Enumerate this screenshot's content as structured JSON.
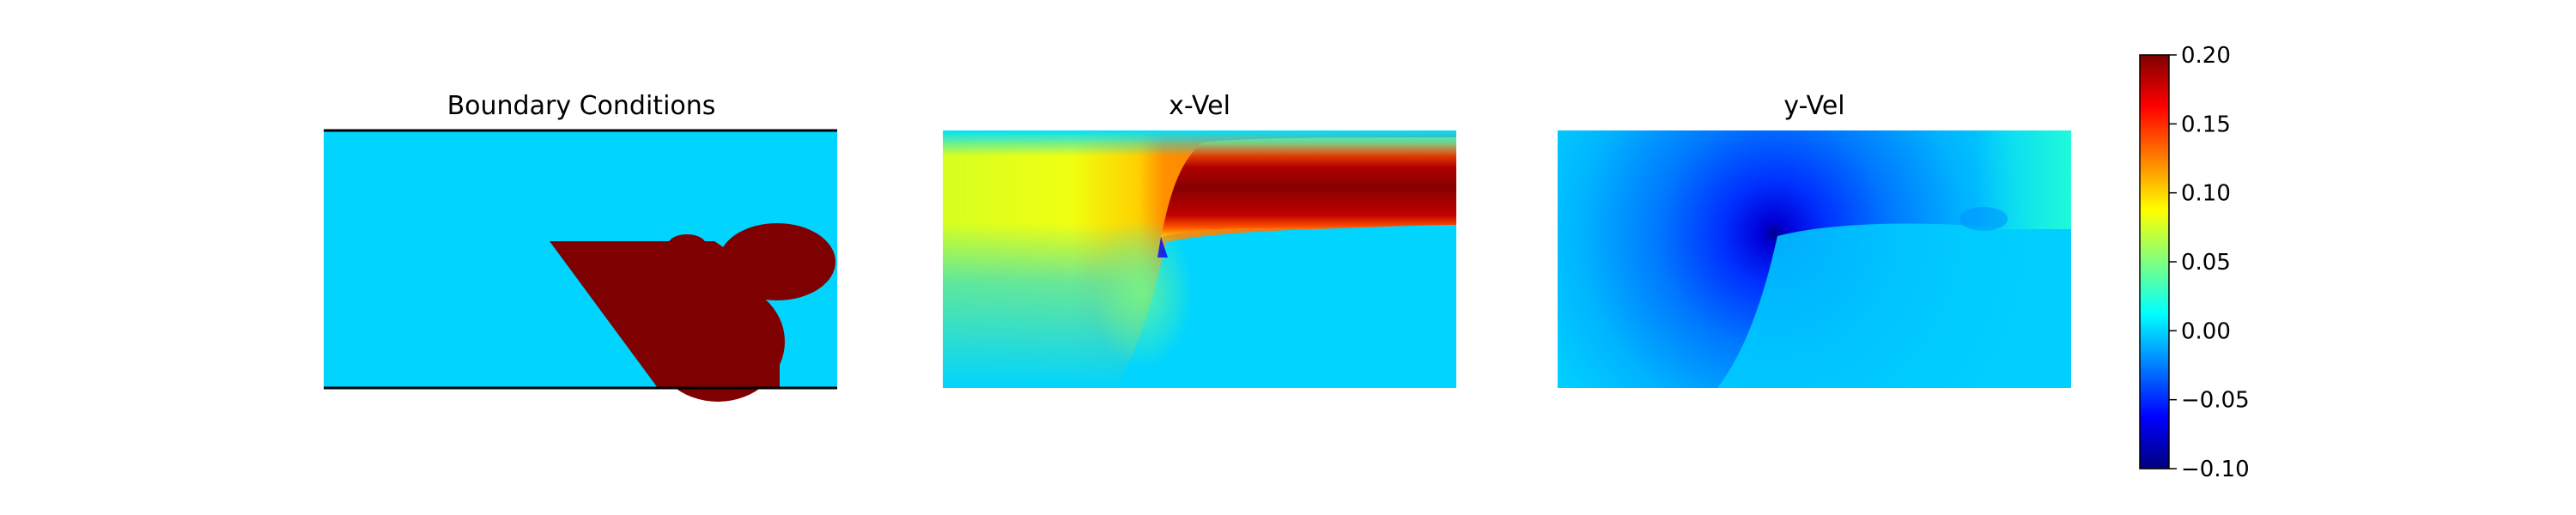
{
  "chart_data": {
    "type": "heatmap",
    "colormap": "jet",
    "colorbar": {
      "range": [
        -0.1,
        0.2
      ],
      "ticks": [
        {
          "value": 0.2,
          "label": "0.20"
        },
        {
          "value": 0.15,
          "label": "0.15"
        },
        {
          "value": 0.1,
          "label": "0.10"
        },
        {
          "value": 0.05,
          "label": "0.05"
        },
        {
          "value": 0.0,
          "label": "0.00"
        },
        {
          "value": -0.05,
          "label": "−0.05"
        },
        {
          "value": -0.1,
          "label": "−0.10"
        }
      ],
      "colors": {
        "stops": [
          "#00007f",
          "#0000ff",
          "#007fff",
          "#00ffff",
          "#7fff7f",
          "#ffff00",
          "#ff7f00",
          "#ff0000",
          "#7f0000"
        ]
      }
    },
    "panels": [
      {
        "title": "Boundary Conditions",
        "background_value": 0.0,
        "obstacle_value": 0.2,
        "colors": {
          "fluid": "#00d4ff",
          "obstacle": "#7f0000",
          "wall": "#000000"
        }
      },
      {
        "title": "x-Vel",
        "colors": {
          "upstream": "#e6ff12",
          "wake": "#00d4ff",
          "jet": "#8a0000",
          "jet_edge": "#ff2a00"
        }
      },
      {
        "title": "y-Vel",
        "colors": {
          "background": "#00cfff",
          "low": "#0a00d8",
          "mid": "#0068ff",
          "high": "#22ffd6"
        }
      }
    ]
  }
}
